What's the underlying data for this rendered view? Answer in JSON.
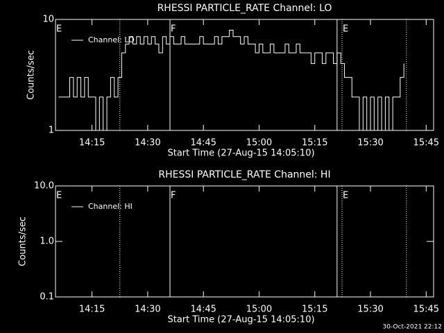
{
  "chart_data": [
    {
      "type": "line",
      "title": "RHESSI PARTICLE_RATE Channel: LO",
      "xlabel": "Start Time (27-Aug-15 14:05:10)",
      "ylabel": "Counts/sec",
      "log_y": true,
      "step": true,
      "color": "#ffffff",
      "xlim": [
        "14:05:10",
        "15:47"
      ],
      "xticks": [
        "14:15",
        "14:30",
        "14:45",
        "15:00",
        "15:15",
        "15:30",
        "15:45"
      ],
      "ylim": [
        1,
        10
      ],
      "yticks": [
        10,
        1
      ],
      "vlines": [
        {
          "x": "14:22:30",
          "style": "dotted"
        },
        {
          "x": "14:36",
          "style": "solid"
        },
        {
          "x": "15:21",
          "style": "solid"
        },
        {
          "x": "15:22:20",
          "style": "dotted"
        },
        {
          "x": "15:39:40",
          "style": "dotted"
        }
      ],
      "annotations": [
        {
          "x": "14:05:10",
          "label": "E"
        },
        {
          "x": "14:36",
          "label": "F"
        },
        {
          "x": "15:22:20",
          "label": "E"
        }
      ],
      "series": [
        {
          "name": "Channel: LO",
          "color": "#ffffff",
          "x": [
            "14:06",
            "14:07",
            "14:08",
            "14:09",
            "14:10",
            "14:11",
            "14:12",
            "14:13",
            "14:14",
            "14:15",
            "14:16",
            "14:17",
            "14:18",
            "14:19",
            "14:20",
            "14:21",
            "14:22",
            "14:23",
            "14:24",
            "14:25",
            "14:26",
            "14:27",
            "14:28",
            "14:29",
            "14:30",
            "14:31",
            "14:32",
            "14:33",
            "14:34",
            "14:35",
            "14:36",
            "14:37",
            "14:38",
            "14:39",
            "14:40",
            "14:41",
            "14:42",
            "14:43",
            "14:44",
            "14:45",
            "14:46",
            "14:47",
            "14:48",
            "14:49",
            "14:50",
            "14:51",
            "14:52",
            "14:53",
            "14:54",
            "14:55",
            "14:56",
            "14:57",
            "14:58",
            "14:59",
            "15:00",
            "15:01",
            "15:02",
            "15:03",
            "15:04",
            "15:05",
            "15:06",
            "15:07",
            "15:08",
            "15:09",
            "15:10",
            "15:11",
            "15:12",
            "15:13",
            "15:14",
            "15:15",
            "15:16",
            "15:17",
            "15:18",
            "15:19",
            "15:20",
            "15:21",
            "15:22",
            "15:23",
            "15:24",
            "15:25",
            "15:26",
            "15:27",
            "15:28",
            "15:29",
            "15:30",
            "15:31",
            "15:32",
            "15:33",
            "15:34",
            "15:35",
            "15:36",
            "15:37",
            "15:38",
            "15:39"
          ],
          "values": [
            2,
            2,
            2,
            3,
            2,
            3,
            2,
            3,
            2,
            2,
            1,
            2,
            1,
            2,
            3,
            2,
            3,
            5,
            6,
            7,
            6,
            7,
            6,
            7,
            6,
            7,
            6,
            5,
            7,
            6,
            7,
            6,
            6,
            7,
            6,
            6,
            6,
            6,
            7,
            6,
            6,
            6,
            7,
            6,
            7,
            7,
            8,
            7,
            7,
            6,
            7,
            6,
            6,
            5,
            6,
            5,
            5,
            6,
            5,
            5,
            5,
            6,
            5,
            5,
            6,
            5,
            5,
            5,
            4,
            5,
            5,
            4,
            5,
            5,
            4,
            5,
            4,
            3,
            3,
            2,
            2,
            1,
            2,
            1,
            2,
            1,
            2,
            1,
            2,
            1,
            2,
            2,
            3,
            4
          ]
        }
      ]
    },
    {
      "type": "line",
      "title": "RHESSI PARTICLE_RATE Channel: HI",
      "xlabel": "Start Time (27-Aug-15 14:05:10)",
      "ylabel": "Counts/sec",
      "log_y": true,
      "step": true,
      "color": "#ffffff",
      "xlim": [
        "14:05:10",
        "15:47"
      ],
      "xticks": [
        "14:15",
        "14:30",
        "14:45",
        "15:00",
        "15:15",
        "15:30",
        "15:45"
      ],
      "ylim": [
        0.1,
        10
      ],
      "yticks": [
        {
          "value": 10,
          "label": "10.0"
        },
        {
          "value": 1,
          "label": "1.0"
        },
        0.1
      ],
      "vlines": [
        {
          "x": "14:22:30",
          "style": "dotted"
        },
        {
          "x": "14:36",
          "style": "solid"
        },
        {
          "x": "15:21",
          "style": "solid"
        },
        {
          "x": "15:22:20",
          "style": "dotted"
        },
        {
          "x": "15:39:40",
          "style": "dotted"
        }
      ],
      "annotations": [
        {
          "x": "14:05:10",
          "label": "E"
        },
        {
          "x": "14:36",
          "label": "F"
        },
        {
          "x": "15:22:20",
          "label": "E"
        }
      ],
      "series": [
        {
          "name": "Channel: HI",
          "color": "#ffffff",
          "x": [],
          "values": []
        }
      ]
    }
  ],
  "footer": "30-Oct-2021 22:12"
}
